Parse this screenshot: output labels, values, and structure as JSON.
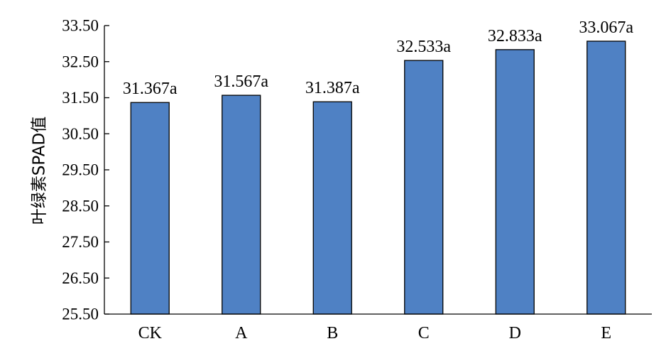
{
  "chart_data": {
    "type": "bar",
    "title": "",
    "xlabel": "",
    "ylabel": "叶绿素SPAD值",
    "categories": [
      "CK",
      "A",
      "B",
      "C",
      "D",
      "E"
    ],
    "values": [
      31.367,
      31.567,
      31.387,
      32.533,
      32.833,
      33.067
    ],
    "data_labels": [
      "31.367a",
      "31.567a",
      "31.387a",
      "32.533a",
      "32.833a",
      "33.067a"
    ],
    "ylim": [
      25.5,
      33.5
    ],
    "yticks": [
      25.5,
      26.5,
      27.5,
      28.5,
      29.5,
      30.5,
      31.5,
      32.5,
      33.5
    ],
    "ytick_labels": [
      "25.50",
      "26.50",
      "27.50",
      "28.50",
      "29.50",
      "30.50",
      "31.50",
      "32.50",
      "33.50"
    ],
    "bar_color": "#4F81C4",
    "grid": false,
    "legend": "none"
  }
}
